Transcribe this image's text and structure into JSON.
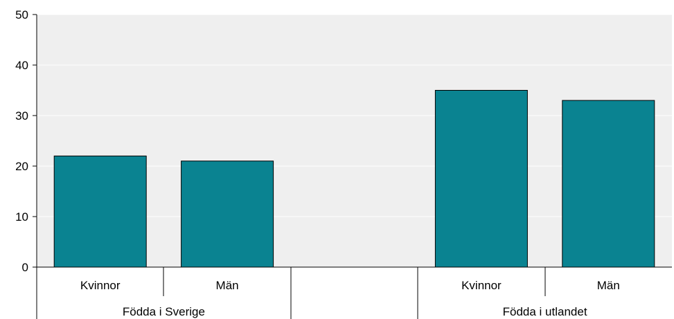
{
  "chart_data": {
    "type": "bar",
    "title": "",
    "xlabel": "",
    "ylabel": "",
    "ylim": [
      0,
      50
    ],
    "yticks": [
      0,
      10,
      20,
      30,
      40,
      50
    ],
    "grid": true,
    "legend": "none",
    "categories": [
      "Kvinnor",
      "Män",
      "",
      "Kvinnor",
      "Män"
    ],
    "groups": [
      "Födda i Sverige",
      "Födda i utlandet"
    ],
    "values": [
      22,
      21,
      null,
      35,
      33
    ],
    "colors": {
      "bar": "#0A8391",
      "bar_stroke": "#000000",
      "plot_background": "#EFEFEF",
      "gridline": "#FFFFFF",
      "axis": "#000000"
    }
  }
}
